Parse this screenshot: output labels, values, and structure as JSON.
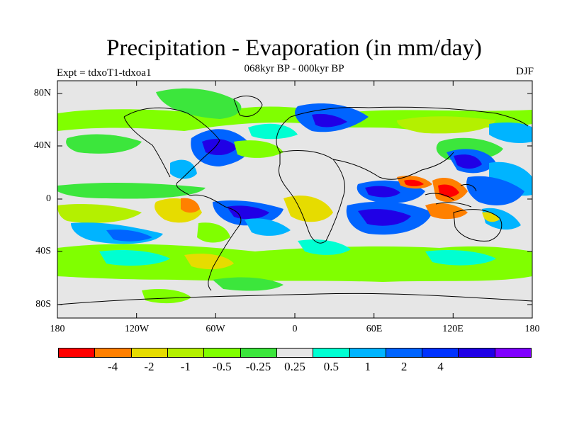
{
  "header": {
    "title": "Precipitation - Evaporation (in mm/day)",
    "subtitle": "068kyr BP - 000kyr BP",
    "experiment": "Expt = tdxoT1-tdxoa1",
    "season": "DJF"
  },
  "axes": {
    "lat_labels": [
      "80N",
      "40N",
      "0",
      "40S",
      "80S"
    ],
    "lon_labels": [
      "180",
      "120W",
      "60W",
      "0",
      "60E",
      "120E",
      "180"
    ]
  },
  "colorbar": {
    "colors": [
      "#ff0000",
      "#ff8000",
      "#e6dc00",
      "#b4f000",
      "#80ff00",
      "#3ce63c",
      "#e6e6e6",
      "#00ffd2",
      "#00b4ff",
      "#0064ff",
      "#0032ff",
      "#2000e6",
      "#8000ff"
    ],
    "labels": [
      "-4",
      "-2",
      "-1",
      "-0.5",
      "-0.25",
      "0.25",
      "0.5",
      "1",
      "2",
      "4"
    ]
  },
  "map_colors": {
    "background": "#e6e6e6",
    "coast": "#000000"
  }
}
